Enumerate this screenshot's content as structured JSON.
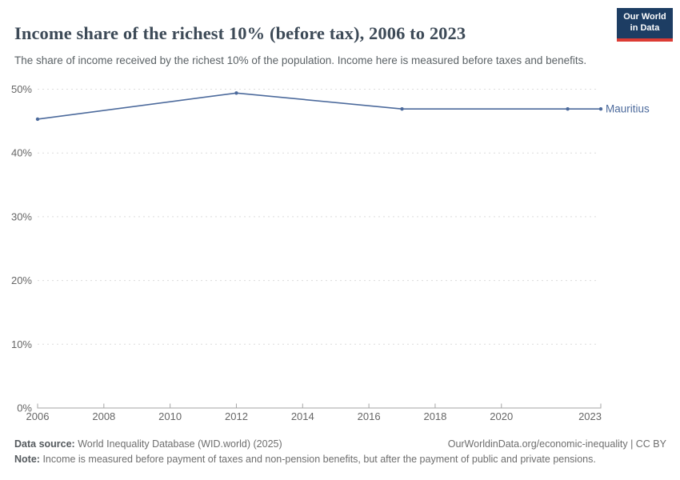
{
  "header": {
    "title": "Income share of the richest 10% (before tax), 2006 to 2023",
    "subtitle": "The share of income received by the richest 10% of the population. Income here is measured before taxes and benefits.",
    "logo_line1": "Our World",
    "logo_line2": "in Data"
  },
  "chart_data": {
    "type": "line",
    "title": "Income share of the richest 10% (before tax), 2006 to 2023",
    "entity": "Mauritius",
    "series": [
      {
        "name": "Mauritius",
        "x": [
          2006,
          2012,
          2017,
          2022,
          2023
        ],
        "values": [
          45.3,
          49.4,
          46.9,
          46.9,
          46.9
        ],
        "color": "#4c6a9c"
      }
    ],
    "xticks": [
      2006,
      2008,
      2010,
      2012,
      2014,
      2016,
      2018,
      2020,
      2023
    ],
    "yticks": [
      0,
      10,
      20,
      30,
      40,
      50
    ],
    "ytick_suffix": "%",
    "xlim": [
      2006,
      2023
    ],
    "ylim": [
      0,
      50
    ],
    "grid": "horizontal-dashed",
    "legend_position": "end-of-line-label",
    "axis_color": "#a5a5a5",
    "grid_color": "#dcdcdc",
    "tick_label_color": "#666666"
  },
  "footer": {
    "datasource_label": "Data source:",
    "datasource_text": "World Inequality Database (WID.world) (2025)",
    "link_text": "OurWorldinData.org/economic-inequality | CC BY",
    "note_label": "Note:",
    "note_text": "Income is measured before payment of taxes and non-pension benefits, but after the payment of public and private pensions."
  }
}
